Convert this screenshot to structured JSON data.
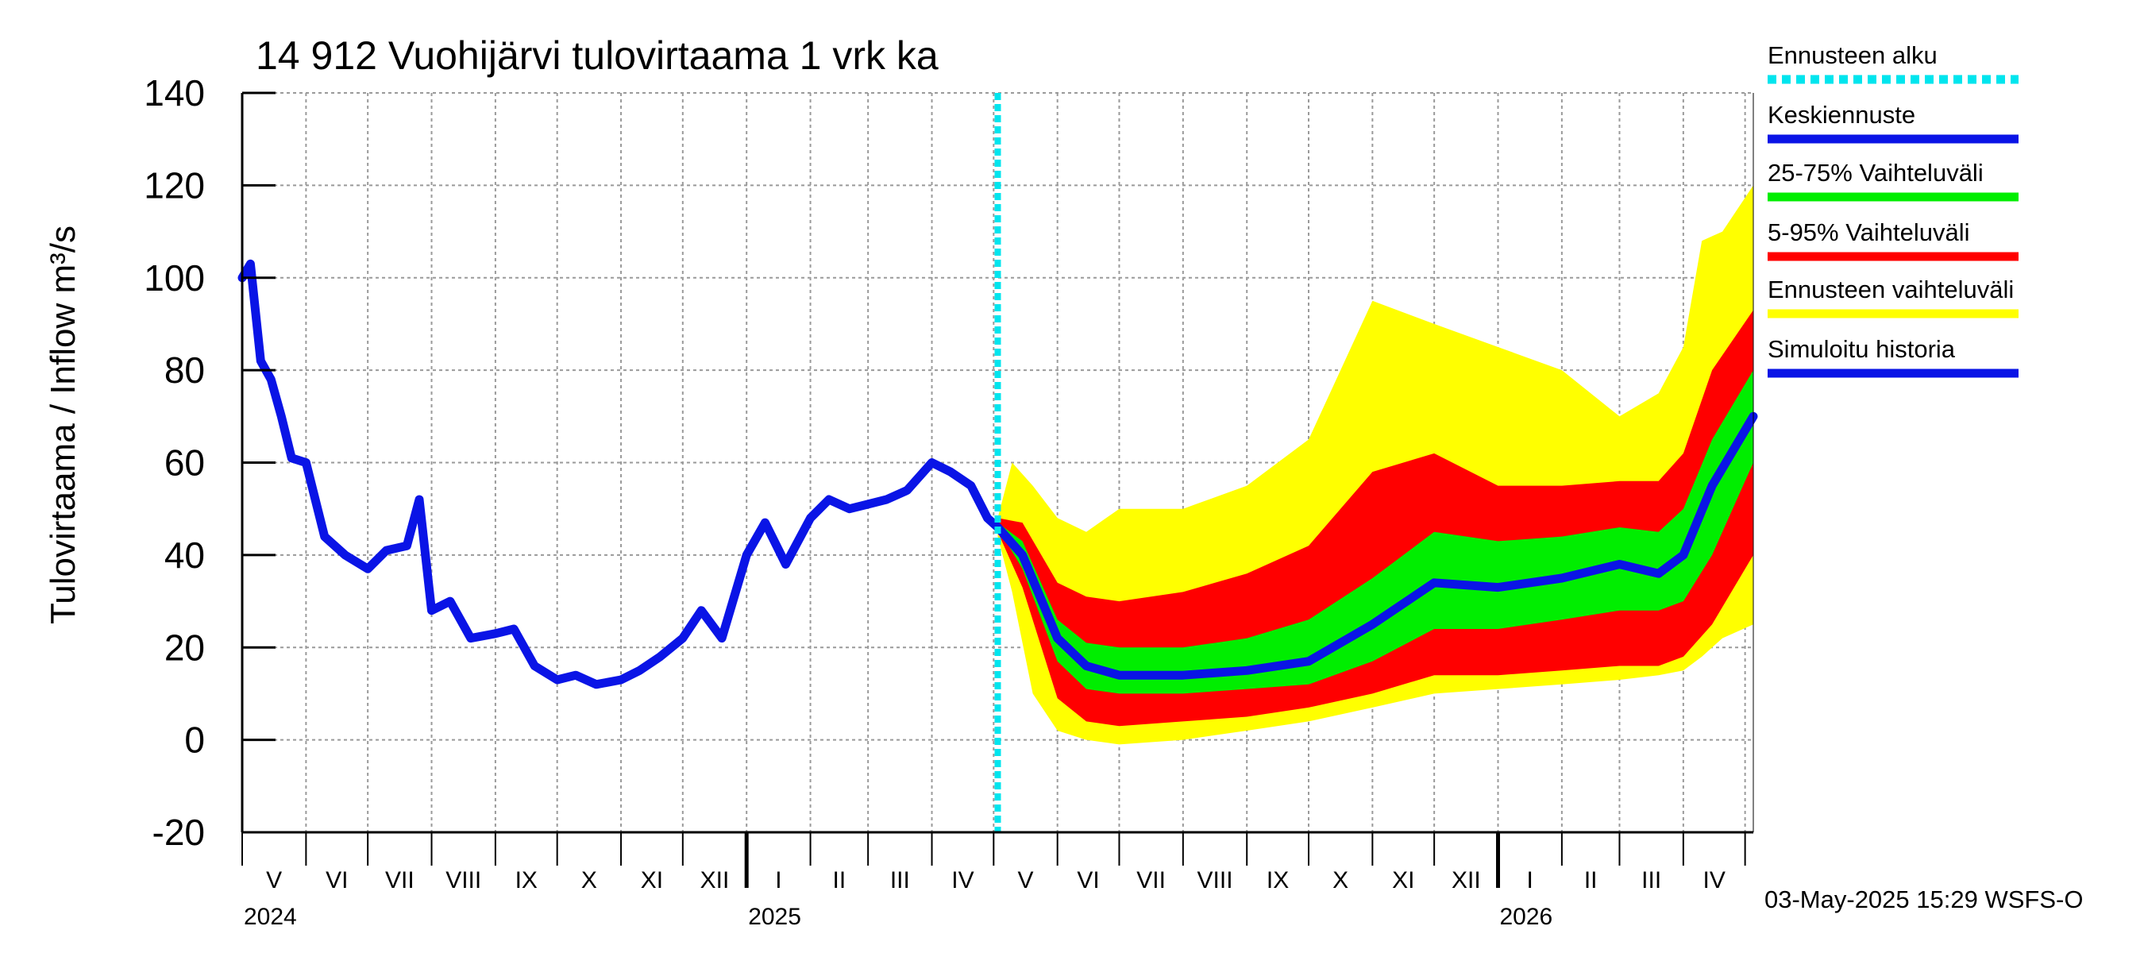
{
  "chart_data": {
    "type": "area",
    "title": "14 912 Vuohijärvi tulovirtaama 1 vrk ka",
    "ylabel": "Tulovirtaama / Inflow    m³/s",
    "xlabel": "",
    "ylim": [
      -20,
      140
    ],
    "yticks": [
      -20,
      0,
      20,
      40,
      60,
      80,
      100,
      120,
      140
    ],
    "grid": true,
    "legend_position": "right",
    "x_start": "2024-05-01",
    "x_end": "2026-05-05",
    "forecast_start": "2025-05-03",
    "months": [
      "V",
      "VI",
      "VII",
      "VIII",
      "IX",
      "X",
      "XI",
      "XII",
      "I",
      "II",
      "III",
      "IV",
      "V",
      "VI",
      "VII",
      "VIII",
      "IX",
      "X",
      "XI",
      "XII",
      "I",
      "II",
      "III",
      "IV"
    ],
    "years": [
      "2024",
      "2025",
      "2026"
    ],
    "legend": [
      {
        "label": "Ennusteen alku",
        "color": "#00e5ee",
        "style": "dashed"
      },
      {
        "label": "Keskiennuste",
        "color": "#0a14e6",
        "style": "solid"
      },
      {
        "label": "25-75% Vaihteluväli",
        "color": "#00ee00",
        "style": "solid"
      },
      {
        "label": "5-95% Vaihteluväli",
        "color": "#ff0000",
        "style": "solid"
      },
      {
        "label": "Ennusteen vaihteluväli",
        "color": "#ffff00",
        "style": "solid"
      },
      {
        "label": "Simuloitu historia",
        "color": "#0a14e6",
        "style": "solid"
      }
    ],
    "series": [
      {
        "name": "Simuloitu historia",
        "x": [
          "2024-05-01",
          "2024-05-05",
          "2024-05-10",
          "2024-05-15",
          "2024-05-20",
          "2024-05-25",
          "2024-06-01",
          "2024-06-10",
          "2024-06-20",
          "2024-07-01",
          "2024-07-10",
          "2024-07-20",
          "2024-07-26",
          "2024-08-01",
          "2024-08-10",
          "2024-08-20",
          "2024-09-01",
          "2024-09-10",
          "2024-09-20",
          "2024-10-01",
          "2024-10-10",
          "2024-10-20",
          "2024-11-01",
          "2024-11-10",
          "2024-11-20",
          "2024-12-01",
          "2024-12-10",
          "2024-12-20",
          "2025-01-01",
          "2025-01-10",
          "2025-01-20",
          "2025-02-01",
          "2025-02-10",
          "2025-02-20",
          "2025-03-01",
          "2025-03-10",
          "2025-03-20",
          "2025-04-01",
          "2025-04-10",
          "2025-04-20",
          "2025-04-28",
          "2025-05-03"
        ],
        "y": [
          100,
          103,
          82,
          78,
          70,
          61,
          60,
          44,
          40,
          37,
          41,
          42,
          52,
          28,
          30,
          22,
          23,
          24,
          16,
          13,
          14,
          12,
          13,
          15,
          18,
          22,
          28,
          22,
          40,
          47,
          38,
          48,
          52,
          50,
          51,
          52,
          54,
          60,
          58,
          55,
          48,
          46
        ]
      },
      {
        "name": "Keskiennuste",
        "x": [
          "2025-05-03",
          "2025-05-15",
          "2025-06-01",
          "2025-06-15",
          "2025-07-01",
          "2025-08-01",
          "2025-09-01",
          "2025-10-01",
          "2025-11-01",
          "2025-12-01",
          "2026-01-01",
          "2026-02-01",
          "2026-03-01",
          "2026-03-20",
          "2026-04-01",
          "2026-04-15",
          "2026-05-05"
        ],
        "y": [
          46,
          40,
          22,
          16,
          14,
          14,
          15,
          17,
          25,
          34,
          33,
          35,
          38,
          36,
          40,
          55,
          70
        ]
      },
      {
        "name": "25-75% Vaihteluväli",
        "x": [
          "2025-05-03",
          "2025-05-15",
          "2025-06-01",
          "2025-06-15",
          "2025-07-01",
          "2025-08-01",
          "2025-09-01",
          "2025-10-01",
          "2025-11-01",
          "2025-12-01",
          "2026-01-01",
          "2026-02-01",
          "2026-03-01",
          "2026-03-20",
          "2026-04-01",
          "2026-04-15",
          "2026-05-05"
        ],
        "y_low": [
          46,
          37,
          17,
          11,
          10,
          10,
          11,
          12,
          17,
          24,
          24,
          26,
          28,
          28,
          30,
          40,
          60
        ],
        "y_high": [
          47,
          43,
          26,
          21,
          20,
          20,
          22,
          26,
          35,
          45,
          43,
          44,
          46,
          45,
          50,
          65,
          80
        ]
      },
      {
        "name": "5-95% Vaihteluväli",
        "x": [
          "2025-05-03",
          "2025-05-15",
          "2025-06-01",
          "2025-06-15",
          "2025-07-01",
          "2025-08-01",
          "2025-09-01",
          "2025-10-01",
          "2025-11-01",
          "2025-12-01",
          "2026-01-01",
          "2026-02-01",
          "2026-03-01",
          "2026-03-20",
          "2026-04-01",
          "2026-04-15",
          "2026-05-05"
        ],
        "y_low": [
          45,
          33,
          9,
          4,
          3,
          4,
          5,
          7,
          10,
          14,
          14,
          15,
          16,
          16,
          18,
          25,
          40
        ],
        "y_high": [
          48,
          47,
          34,
          31,
          30,
          32,
          36,
          42,
          58,
          62,
          55,
          55,
          56,
          56,
          62,
          80,
          93
        ]
      },
      {
        "name": "Ennusteen vaihteluväli",
        "x": [
          "2025-05-03",
          "2025-05-10",
          "2025-05-20",
          "2025-06-01",
          "2025-06-15",
          "2025-07-01",
          "2025-08-01",
          "2025-09-01",
          "2025-10-01",
          "2025-11-01",
          "2025-12-01",
          "2026-01-01",
          "2026-02-01",
          "2026-03-01",
          "2026-03-20",
          "2026-04-01",
          "2026-04-10",
          "2026-04-20",
          "2026-05-05"
        ],
        "y_low": [
          44,
          32,
          10,
          2,
          0,
          -1,
          0,
          2,
          4,
          7,
          10,
          11,
          12,
          13,
          14,
          15,
          18,
          22,
          25
        ],
        "y_high": [
          48,
          60,
          55,
          48,
          45,
          50,
          50,
          55,
          65,
          95,
          90,
          85,
          80,
          70,
          75,
          85,
          108,
          110,
          120
        ]
      }
    ]
  }
}
